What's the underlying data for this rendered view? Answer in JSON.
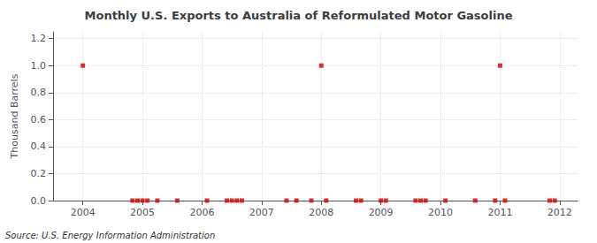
{
  "chart_data": {
    "type": "scatter",
    "title": "Monthly U.S. Exports to Australia of Reformulated Motor Gasoline",
    "ylabel": "Thousand Barrels",
    "annotation": "Source: U.S. Energy Information Administration",
    "color": "#cc0000",
    "marker": "square",
    "grid": true,
    "xlim": [
      2003.5,
      2012.3
    ],
    "ylim": [
      0.0,
      1.25
    ],
    "xticks": [
      2004,
      2005,
      2006,
      2007,
      2008,
      2009,
      2010,
      2011,
      2012
    ],
    "yticks": [
      {
        "value": 0.0,
        "label": "0.0"
      },
      0.2,
      0.4,
      0.6,
      0.8,
      {
        "value": 1.0,
        "label": "1.0"
      },
      1.2
    ],
    "x": [
      2004.0,
      2004.833,
      2004.917,
      2005.0,
      2005.083,
      2005.25,
      2005.583,
      2006.083,
      2006.417,
      2006.5,
      2006.583,
      2006.667,
      2007.417,
      2007.583,
      2007.833,
      2008.0,
      2008.083,
      2008.583,
      2008.667,
      2009.0,
      2009.083,
      2009.583,
      2009.667,
      2009.75,
      2010.083,
      2010.583,
      2010.917,
      2011.0,
      2011.083,
      2011.833,
      2011.917
    ],
    "values": [
      1.0,
      0.0,
      0.0,
      0.0,
      0.0,
      0.0,
      0.0,
      0.0,
      0.0,
      0.0,
      0.0,
      0.0,
      0.0,
      0.0,
      0.0,
      1.0,
      0.0,
      0.0,
      0.0,
      0.0,
      0.0,
      0.0,
      0.0,
      0.0,
      0.0,
      0.0,
      0.0,
      1.0,
      0.0,
      0.0,
      0.0
    ]
  }
}
